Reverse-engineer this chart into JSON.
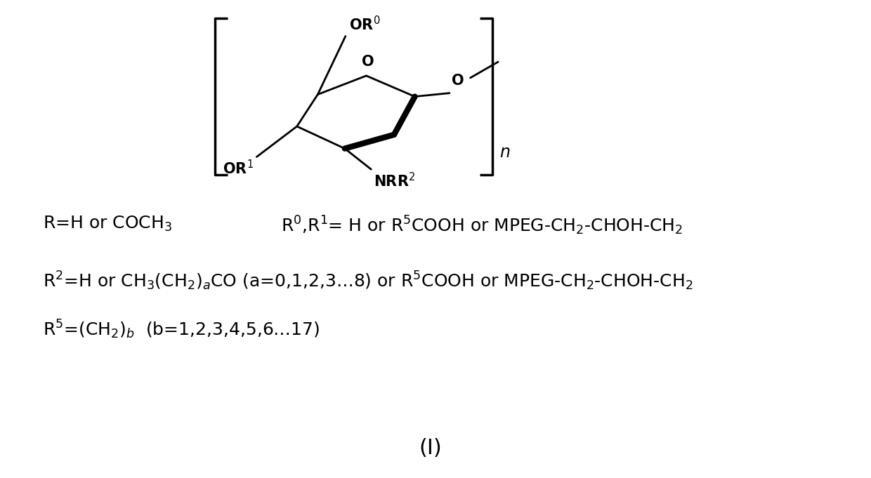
{
  "bg_color": "#ffffff",
  "fig_width": 12.4,
  "fig_height": 6.81,
  "dpi": 100,
  "title_label": "(Ⅰ)",
  "line1_left": "R=H or COCH$_3$",
  "line1_right": "R$^0$,R$^1$= H or R$^5$COOH or MPEG-CH$_2$-CHOH-CH$_2$",
  "line2": "R$^2$=H or CH$_3$(CH$_2$)$_a$CO (a=0,1,2,3…8) or R$^5$COOH or MPEG-CH$_2$-CHOH-CH$_2$",
  "line3": "R$^5$=(CH$_2$)$_b$  (b=1,2,3,4,5,6…17)",
  "font_size": 18,
  "title_font_size": 22,
  "lw_main": 2.0,
  "lw_bold": 6.0,
  "lw_bracket": 2.5
}
